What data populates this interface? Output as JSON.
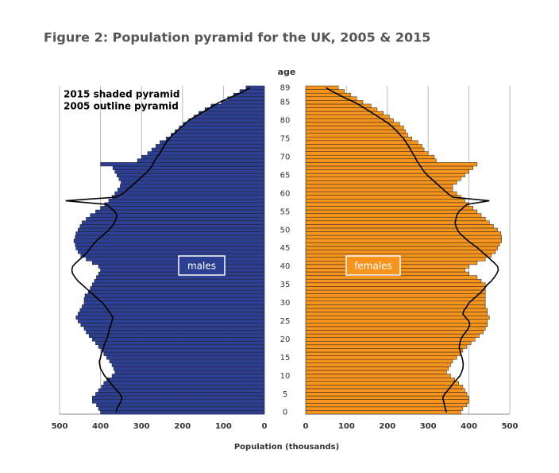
{
  "chart_data": {
    "type": "pyramid",
    "title": "Figure 2: Population pyramid for the UK, 2005 & 2015",
    "age_label": "age",
    "xlabel": "Population (thousands)",
    "annotations": [
      "2015 shaded pyramid",
      "2005 outline pyramid"
    ],
    "categories": [
      0,
      null,
      null,
      null,
      null,
      5,
      null,
      null,
      null,
      null,
      10,
      null,
      null,
      null,
      null,
      15,
      null,
      null,
      null,
      null,
      20,
      null,
      null,
      null,
      null,
      25,
      null,
      null,
      null,
      null,
      30,
      null,
      null,
      null,
      null,
      35,
      null,
      null,
      null,
      null,
      40,
      null,
      null,
      null,
      null,
      45,
      null,
      null,
      null,
      null,
      50,
      null,
      null,
      null,
      null,
      55,
      null,
      null,
      null,
      null,
      60,
      null,
      null,
      null,
      null,
      65,
      null,
      null,
      null,
      null,
      70,
      null,
      null,
      null,
      null,
      75,
      null,
      null,
      null,
      null,
      80,
      null,
      null,
      null,
      null,
      85,
      null,
      null,
      null,
      89
    ],
    "xlim": [
      0,
      500
    ],
    "xticks": [
      0,
      100,
      200,
      300,
      400,
      500
    ],
    "grid": true,
    "outline_color": "#000000",
    "series": [
      {
        "name": "males",
        "color": "#2d3f93",
        "values": [
          400,
          405,
          410,
          420,
          420,
          412,
          405,
          398,
          392,
          385,
          372,
          365,
          368,
          372,
          378,
          385,
          392,
          398,
          405,
          412,
          420,
          428,
          435,
          440,
          448,
          455,
          460,
          455,
          450,
          445,
          440,
          440,
          438,
          430,
          425,
          420,
          415,
          410,
          405,
          400,
          405,
          420,
          435,
          448,
          455,
          460,
          462,
          465,
          462,
          460,
          455,
          450,
          445,
          435,
          425,
          412,
          400,
          390,
          380,
          372,
          365,
          358,
          352,
          350,
          355,
          360,
          365,
          370,
          400,
          310,
          300,
          285,
          275,
          265,
          255,
          240,
          228,
          218,
          208,
          198,
          185,
          172,
          160,
          145,
          130,
          105,
          90,
          75,
          60,
          45
        ],
        "outline": [
          362,
          360,
          355,
          350,
          348,
          352,
          360,
          368,
          375,
          382,
          390,
          395,
          400,
          402,
          403,
          400,
          398,
          395,
          392,
          390,
          385,
          382,
          380,
          378,
          375,
          372,
          370,
          375,
          382,
          388,
          395,
          405,
          415,
          425,
          435,
          445,
          455,
          462,
          468,
          470,
          468,
          460,
          450,
          440,
          432,
          425,
          418,
          410,
          400,
          390,
          380,
          372,
          366,
          362,
          360,
          365,
          375,
          385,
          485,
          362,
          345,
          335,
          325,
          315,
          305,
          295,
          285,
          278,
          272,
          268,
          262,
          255,
          250,
          245,
          240,
          232,
          225,
          215,
          205,
          195,
          185,
          170,
          155,
          140,
          125,
          110,
          90,
          70,
          50,
          35
        ]
      },
      {
        "name": "females",
        "color": "#f7941d",
        "values": [
          380,
          385,
          395,
          400,
          400,
          395,
          390,
          385,
          375,
          365,
          355,
          345,
          350,
          355,
          360,
          370,
          380,
          385,
          395,
          405,
          415,
          425,
          435,
          440,
          445,
          445,
          450,
          445,
          445,
          440,
          440,
          440,
          440,
          440,
          440,
          440,
          430,
          420,
          400,
          390,
          400,
          420,
          440,
          455,
          465,
          470,
          475,
          480,
          480,
          478,
          470,
          460,
          450,
          440,
          430,
          420,
          410,
          400,
          390,
          380,
          370,
          360,
          360,
          370,
          380,
          390,
          400,
          410,
          420,
          320,
          315,
          300,
          290,
          285,
          275,
          260,
          250,
          245,
          240,
          230,
          215,
          205,
          190,
          175,
          160,
          140,
          125,
          110,
          95,
          80
        ],
        "outline": [
          345,
          342,
          340,
          338,
          336,
          340,
          348,
          355,
          362,
          370,
          378,
          382,
          385,
          386,
          385,
          383,
          380,
          378,
          376,
          378,
          380,
          385,
          392,
          398,
          402,
          400,
          392,
          385,
          388,
          395,
          400,
          410,
          420,
          430,
          438,
          445,
          455,
          462,
          468,
          472,
          470,
          462,
          452,
          442,
          432,
          422,
          410,
          398,
          388,
          378,
          372,
          368,
          366,
          368,
          370,
          375,
          385,
          395,
          450,
          360,
          348,
          338,
          328,
          318,
          308,
          298,
          290,
          284,
          278,
          272,
          268,
          262,
          257,
          252,
          246,
          240,
          232,
          224,
          215,
          205,
          192,
          178,
          164,
          150,
          135,
          120,
          100,
          82,
          65,
          50
        ]
      }
    ]
  }
}
